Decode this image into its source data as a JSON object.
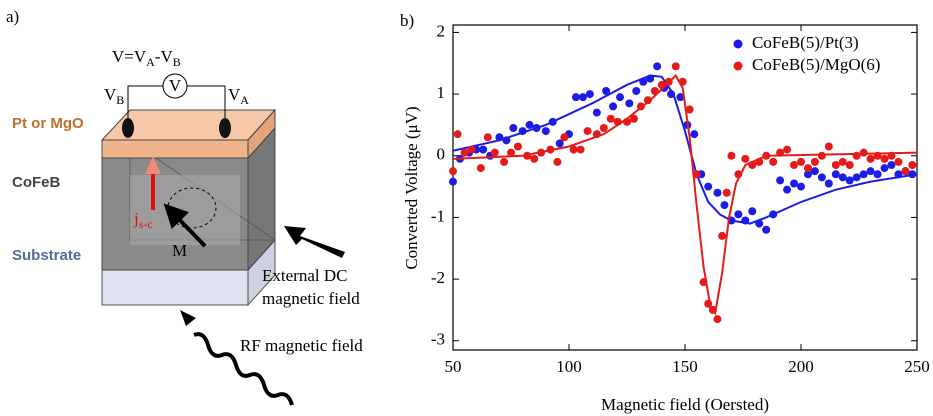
{
  "panel_a": {
    "label": "a)",
    "formula": [
      "V=V",
      "A",
      "-V",
      "B"
    ],
    "meter": "V",
    "electrode_b": [
      "V",
      "B"
    ],
    "electrode_a": [
      "V",
      "A"
    ],
    "layers": [
      "Pt or MgO",
      "CoFeB",
      "Substrate"
    ],
    "current": [
      "j",
      "s-c"
    ],
    "magnetization": "M",
    "dc_field": [
      "External DC",
      "magnetic field"
    ],
    "rf_field": "RF magnetic field"
  },
  "chart_data": {
    "type": "scatter",
    "panel_label": "b)",
    "x_label": "Magnetic field (Oersted)",
    "y_label": "Converted Voltage (μV)",
    "xlim": [
      50,
      250
    ],
    "ylim": [
      -3.15,
      2.12
    ],
    "xticks": [
      50,
      100,
      150,
      200,
      250
    ],
    "yticks": [
      -3,
      -2,
      -1,
      0,
      1,
      2
    ],
    "legend": "upper right",
    "series": [
      {
        "name": "CoFeB(5)/Pt(3)",
        "color": "#1c1ce6",
        "x": [
          50,
          53,
          57,
          60,
          63,
          66,
          70,
          73,
          76,
          80,
          83,
          86,
          90,
          93,
          96,
          100,
          103,
          106,
          109,
          112,
          116,
          119,
          122,
          126,
          129,
          132,
          135,
          138,
          141,
          144,
          148,
          151,
          154,
          157,
          160,
          164,
          167,
          170,
          173,
          176,
          179,
          182,
          185,
          188,
          191,
          194,
          197,
          200,
          203,
          206,
          209,
          212,
          215,
          218,
          221,
          224,
          227,
          230,
          233,
          236,
          239,
          242,
          245,
          248
        ],
        "values": [
          -0.42,
          -0.05,
          0.05,
          0.1,
          0.1,
          0.0,
          0.3,
          0.25,
          0.45,
          0.4,
          0.5,
          0.45,
          0.4,
          0.55,
          0.2,
          0.35,
          0.95,
          0.95,
          1.0,
          0.7,
          1.05,
          0.8,
          0.95,
          0.85,
          1.05,
          1.2,
          1.25,
          1.45,
          1.1,
          1.0,
          0.95,
          0.5,
          0.35,
          -0.3,
          -0.5,
          -0.6,
          -0.8,
          -1.05,
          -0.95,
          -1.05,
          -0.9,
          -1.1,
          -1.2,
          -0.95,
          -0.4,
          -0.55,
          -0.45,
          -0.5,
          -0.3,
          -0.25,
          -0.35,
          -0.45,
          -0.3,
          -0.35,
          -0.4,
          -0.35,
          -0.3,
          -0.25,
          -0.3,
          -0.2,
          -0.15,
          -0.3,
          -0.25,
          -0.3
        ],
        "fit": {
          "x": [
            50,
            70,
            90,
            110,
            125,
            135,
            140,
            145,
            150,
            155,
            160,
            165,
            170,
            178,
            185,
            200,
            215,
            230,
            250
          ],
          "values": [
            0.08,
            0.25,
            0.5,
            0.85,
            1.15,
            1.3,
            1.28,
            1.0,
            0.4,
            -0.3,
            -0.75,
            -0.95,
            -1.05,
            -1.1,
            -1.0,
            -0.75,
            -0.55,
            -0.42,
            -0.3
          ]
        }
      },
      {
        "name": "CoFeB(5)/MgO(6)",
        "color": "#e61a1a",
        "x": [
          50,
          52,
          55,
          58,
          62,
          65,
          68,
          72,
          75,
          78,
          82,
          85,
          88,
          92,
          95,
          98,
          102,
          105,
          108,
          112,
          115,
          118,
          121,
          125,
          128,
          131,
          134,
          137,
          140,
          143,
          146,
          149,
          152,
          155,
          158,
          160,
          162,
          164,
          166,
          168,
          170,
          173,
          176,
          179,
          182,
          185,
          188,
          191,
          194,
          197,
          200,
          203,
          206,
          209,
          212,
          215,
          218,
          221,
          224,
          227,
          230,
          233,
          236,
          239,
          242,
          245,
          248
        ],
        "values": [
          -0.25,
          0.35,
          0.05,
          0.1,
          -0.2,
          0.3,
          0.05,
          -0.1,
          0.05,
          0.15,
          0.0,
          -0.05,
          0.05,
          0.1,
          -0.1,
          0.3,
          0.1,
          0.1,
          0.4,
          0.35,
          0.45,
          0.6,
          0.55,
          0.55,
          0.6,
          0.8,
          0.9,
          1.05,
          1.15,
          1.2,
          1.45,
          1.2,
          0.75,
          -0.3,
          -2.05,
          -2.4,
          -2.5,
          -2.65,
          -1.3,
          -0.6,
          0.0,
          -0.3,
          -0.05,
          -0.15,
          -0.1,
          0.0,
          -0.1,
          0.05,
          0.1,
          -0.15,
          -0.1,
          -0.2,
          -0.1,
          0.0,
          0.15,
          -0.15,
          -0.1,
          -0.15,
          0.0,
          0.05,
          -0.05,
          0.0,
          -0.05,
          0.0,
          -0.1,
          -0.25,
          -0.15
        ],
        "fit": {
          "x": [
            50,
            80,
            100,
            115,
            125,
            135,
            142,
            146,
            149,
            152,
            155,
            158,
            161,
            163,
            166,
            169,
            172,
            176,
            185,
            250
          ],
          "values": [
            -0.05,
            0.0,
            0.15,
            0.35,
            0.6,
            0.9,
            1.15,
            1.3,
            1.1,
            0.3,
            -0.8,
            -1.8,
            -2.45,
            -2.55,
            -1.9,
            -1.0,
            -0.45,
            -0.15,
            0.0,
            0.05
          ]
        }
      }
    ]
  }
}
